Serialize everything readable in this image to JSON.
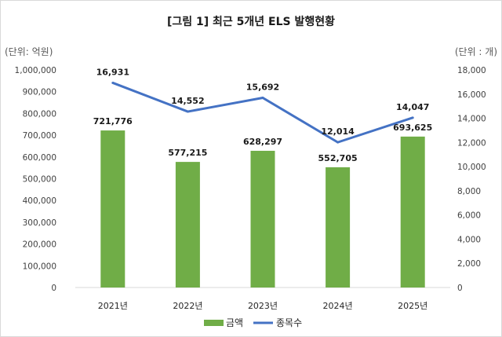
{
  "colors": {
    "bar": "#70ad47",
    "line": "#4472c4"
  },
  "chart_data": {
    "type": "bar",
    "title": "[그림 1] 최근 5개년 ELS 발행현황",
    "left_unit": "(단위: 억원)",
    "right_unit": "(단위 : 개)",
    "categories": [
      "2021년",
      "2022년",
      "2023년",
      "2024년",
      "2025년"
    ],
    "left_axis": {
      "ylim": [
        0,
        1000000
      ],
      "ticks": [
        "0",
        "100,000",
        "200,000",
        "300,000",
        "400,000",
        "500,000",
        "600,000",
        "700,000",
        "800,000",
        "900,000",
        "1,000,000"
      ]
    },
    "right_axis": {
      "ylim": [
        0,
        18000
      ],
      "ticks": [
        "0",
        "2,000",
        "4,000",
        "6,000",
        "8,000",
        "10,000",
        "12,000",
        "14,000",
        "16,000",
        "18,000"
      ]
    },
    "series": [
      {
        "name": "금액",
        "type": "bar",
        "axis": "left",
        "values": [
          721776,
          577215,
          628297,
          552705,
          693625
        ],
        "labels": [
          "721,776",
          "577,215",
          "628,297",
          "552,705",
          "693,625"
        ]
      },
      {
        "name": "종목수",
        "type": "line",
        "axis": "right",
        "values": [
          16931,
          14552,
          15692,
          12014,
          14047
        ],
        "labels": [
          "16,931",
          "14,552",
          "15,692",
          "12,014",
          "14,047"
        ]
      }
    ],
    "legend_position": "bottom",
    "grid": false
  }
}
